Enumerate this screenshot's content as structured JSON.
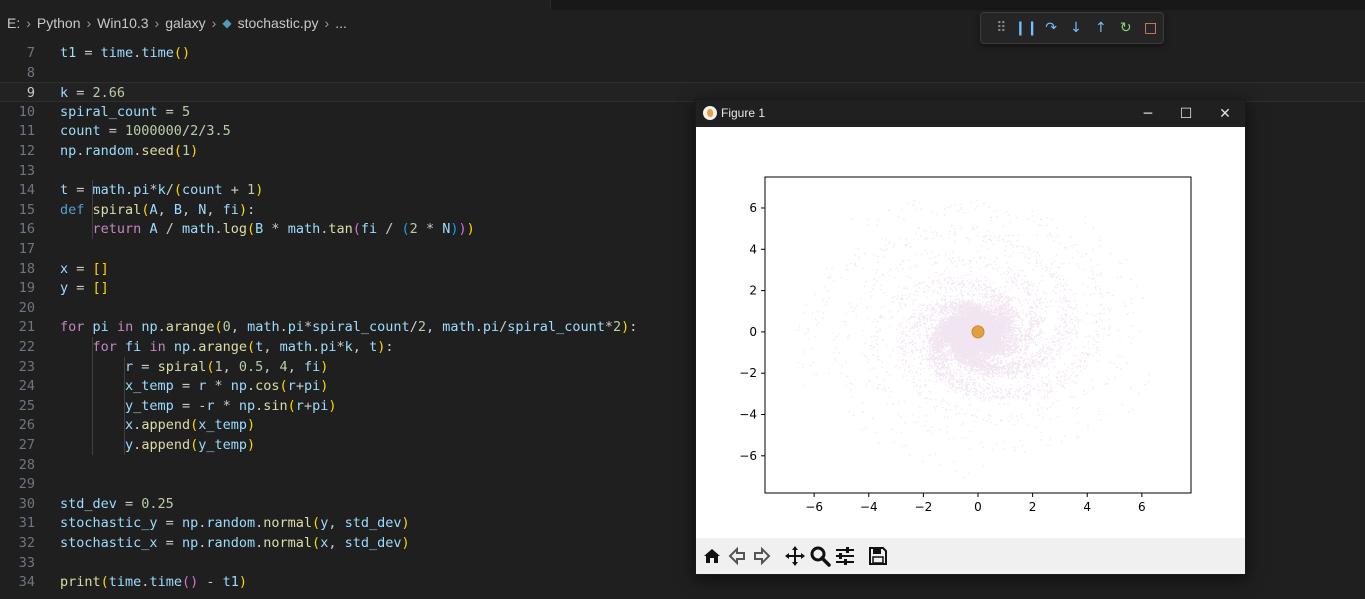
{
  "breadcrumb": {
    "drive": "E:",
    "items": [
      "Python",
      "Win10.3",
      "galaxy",
      "stochastic.py",
      "..."
    ]
  },
  "editor": {
    "current_line": 9,
    "lines": [
      {
        "n": "7",
        "code": "t1 = time.time()"
      },
      {
        "n": "8",
        "code": ""
      },
      {
        "n": "9",
        "code": "k = 2.66"
      },
      {
        "n": "10",
        "code": "spiral_count = 5"
      },
      {
        "n": "11",
        "code": "count = 1000000/2/3.5"
      },
      {
        "n": "12",
        "code": "np.random.seed(1)"
      },
      {
        "n": "13",
        "code": ""
      },
      {
        "n": "14",
        "code": "t = math.pi*k/(count + 1)"
      },
      {
        "n": "15",
        "code": "def spiral(A, B, N, fi):"
      },
      {
        "n": "16",
        "code": "    return A / math.log(B * math.tan(fi / (2 * N)))"
      },
      {
        "n": "17",
        "code": ""
      },
      {
        "n": "18",
        "code": "x = []"
      },
      {
        "n": "19",
        "code": "y = []"
      },
      {
        "n": "20",
        "code": ""
      },
      {
        "n": "21",
        "code": "for pi in np.arange(0, math.pi*spiral_count/2, math.pi/spiral_count*2):"
      },
      {
        "n": "22",
        "code": "    for fi in np.arange(t, math.pi*k, t):"
      },
      {
        "n": "23",
        "code": "        r = spiral(1, 0.5, 4, fi)"
      },
      {
        "n": "24",
        "code": "        x_temp = r * np.cos(r+pi)"
      },
      {
        "n": "25",
        "code": "        y_temp = -r * np.sin(r+pi)"
      },
      {
        "n": "26",
        "code": "        x.append(x_temp)"
      },
      {
        "n": "27",
        "code": "        y.append(y_temp)"
      },
      {
        "n": "28",
        "code": ""
      },
      {
        "n": "29",
        "code": ""
      },
      {
        "n": "30",
        "code": "std_dev = 0.25"
      },
      {
        "n": "31",
        "code": "stochastic_y = np.random.normal(y, std_dev)"
      },
      {
        "n": "32",
        "code": "stochastic_x = np.random.normal(x, std_dev)"
      },
      {
        "n": "33",
        "code": ""
      },
      {
        "n": "34",
        "code": "print(time.time() - t1)"
      }
    ]
  },
  "debug_toolbar": {
    "buttons": [
      {
        "name": "drag-handle-icon",
        "glyph": "⠿",
        "color": "#8a8a8a"
      },
      {
        "name": "pause-icon",
        "glyph": "❙❙",
        "color": "#75beff"
      },
      {
        "name": "step-over-icon",
        "glyph": "↷",
        "color": "#75beff"
      },
      {
        "name": "step-into-icon",
        "glyph": "↓",
        "color": "#75beff"
      },
      {
        "name": "step-out-icon",
        "glyph": "↑",
        "color": "#75beff"
      },
      {
        "name": "restart-icon",
        "glyph": "↻",
        "color": "#89d185"
      },
      {
        "name": "stop-icon",
        "glyph": "□",
        "color": "#f48771"
      }
    ]
  },
  "figure_window": {
    "title": "Figure 1",
    "controls": {
      "minimize": "─",
      "maximize": "☐",
      "close": "✕"
    },
    "toolbar": [
      "home-icon",
      "back-icon",
      "forward-icon",
      "pan-icon",
      "zoom-icon",
      "configure-subplots-icon",
      "save-icon"
    ]
  },
  "chart_data": {
    "type": "scatter",
    "title": "",
    "xlabel": "",
    "ylabel": "",
    "xlim": [
      -7.8,
      7.8
    ],
    "ylim": [
      -7.8,
      7.5
    ],
    "xticks": [
      -6,
      -4,
      -2,
      0,
      2,
      4,
      6
    ],
    "yticks": [
      6,
      4,
      2,
      0,
      -2,
      -4,
      -6
    ],
    "xtick_labels": [
      "−6",
      "−4",
      "−2",
      "0",
      "2",
      "4",
      "6"
    ],
    "ytick_labels": [
      "6",
      "4",
      "2",
      "0",
      "−2",
      "−4",
      "−6"
    ],
    "grid": false,
    "series": [
      {
        "marker": "dot",
        "color": "#800080",
        "alpha": 0.1,
        "params": {
          "k": 2.66,
          "spiral_count": 5,
          "std_dev": 0.25,
          "A": 1,
          "B": 0.5,
          "N": 4
        }
      },
      {
        "marker": "circle",
        "color": "#e0a040",
        "x": [
          0
        ],
        "y": [
          0
        ]
      }
    ]
  }
}
